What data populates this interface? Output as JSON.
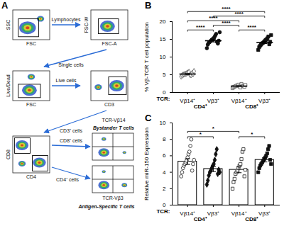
{
  "diagram": {
    "label": "A",
    "plots": [
      {
        "x": "FSC",
        "y": "SSC"
      },
      {
        "x": "FSC-A",
        "y": "FSC-W"
      },
      {
        "x": "FSC",
        "y": "Live/Dead"
      },
      {
        "x": "CD3"
      },
      {
        "x": "CD4",
        "y": "CD8"
      },
      {
        "x": "TCR-Vβ3",
        "y": "TCR-Vβ14"
      }
    ],
    "gates": [
      "Lymphocytes",
      "Single cells",
      "Live cells",
      "CD3⁺ cells"
    ],
    "split": [
      "CD8⁺ cells",
      "CD4⁺ cells"
    ],
    "outputs": {
      "top": "Bystander T cells",
      "bottom": "Antigen-Specific T cells"
    }
  },
  "chart_data": [
    {
      "label": "B",
      "type": "scatter",
      "categories": [
        "Vβ14⁺",
        "Vβ3⁺",
        "Vβ14⁺",
        "Vβ3⁺"
      ],
      "groups": [
        "CD4⁺",
        "CD4⁺",
        "CD8⁺",
        "CD8⁺"
      ],
      "category_title": "TCR:",
      "y_label": "% Vβ-TCR T cell population",
      "ylim": [
        0,
        20
      ],
      "yticks": [
        0,
        5,
        10,
        15,
        20
      ],
      "values": [
        5.2,
        14.6,
        1.8,
        14.1
      ],
      "errors": [
        0.12,
        0.35,
        0.09,
        0.3
      ],
      "points": [
        {
          "values": [
            4.5,
            4.8,
            5.0,
            5.1,
            5.2,
            5.3,
            5.5,
            5.6,
            5.8,
            5.0,
            4.9,
            5.4,
            5.2,
            6.0
          ],
          "marker": "open-diamond",
          "color": "#666666"
        },
        {
          "values": [
            12.5,
            13.5,
            14.0,
            14.2,
            14.5,
            14.8,
            15.0,
            15.2,
            15.5,
            16.0,
            16.5,
            14.3,
            13.8,
            14.6,
            17.0
          ],
          "marker": "circle",
          "color": "#111111"
        },
        {
          "values": [
            1.2,
            1.5,
            1.6,
            1.8,
            1.9,
            2.0,
            2.2,
            1.7,
            1.4,
            2.4,
            1.9,
            1.8,
            1.6,
            2.1
          ],
          "marker": "open-square",
          "color": "#666666"
        },
        {
          "values": [
            12.0,
            12.8,
            13.2,
            13.5,
            13.8,
            14.0,
            14.2,
            14.5,
            14.8,
            15.0,
            15.3,
            15.8,
            13.6,
            14.3,
            16.2
          ],
          "marker": "square",
          "color": "#111111"
        }
      ],
      "comparisons": [
        {
          "pair": [
            0,
            1
          ],
          "label": "****"
        },
        {
          "pair": [
            2,
            3
          ],
          "label": "****"
        },
        {
          "pair": [
            1,
            2
          ],
          "label": "****"
        },
        {
          "pair": [
            0,
            2
          ],
          "label": "****"
        },
        {
          "pair": [
            1,
            3
          ],
          "label": "****"
        },
        {
          "pair": [
            0,
            3
          ],
          "label": "****"
        }
      ]
    },
    {
      "label": "C",
      "type": "bar",
      "categories": [
        "Vβ14⁺",
        "Vβ3⁺",
        "Vβ14⁺",
        "Vβ3⁺"
      ],
      "groups": [
        "CD4⁺",
        "CD4⁺",
        "CD8⁺",
        "CD8⁺"
      ],
      "category_title": "TCR:",
      "y_label": "Relative miR-150 Expression",
      "ylim": [
        0,
        10
      ],
      "yticks": [
        0,
        2,
        4,
        6,
        8,
        10
      ],
      "values": [
        5.3,
        4.4,
        4.3,
        5.5
      ],
      "errors": [
        0.35,
        0.32,
        0.36,
        0.25
      ],
      "points": [
        {
          "values": [
            3.5,
            4.0,
            4.5,
            4.8,
            5.0,
            5.2,
            5.4,
            5.8,
            6.2,
            6.5,
            7.2,
            8.0,
            4.2,
            5.0,
            5.5
          ],
          "marker": "open-circle",
          "color": "#333333"
        },
        {
          "values": [
            2.5,
            3.0,
            3.6,
            4.0,
            4.2,
            4.5,
            4.8,
            5.0,
            5.5,
            6.2,
            6.8,
            3.8,
            4.3,
            4.0
          ],
          "marker": "diamond",
          "color": "#111111"
        },
        {
          "values": [
            2.0,
            2.8,
            3.2,
            3.8,
            4.0,
            4.2,
            4.5,
            4.8,
            5.0,
            5.6,
            6.5,
            6.8,
            3.5,
            4.3
          ],
          "marker": "open-square",
          "color": "#333333"
        },
        {
          "values": [
            4.0,
            4.5,
            4.8,
            5.0,
            5.2,
            5.4,
            5.6,
            5.8,
            6.0,
            6.3,
            6.8,
            7.2,
            5.5,
            5.0
          ],
          "marker": "square",
          "color": "#111111"
        }
      ],
      "comparisons": [
        {
          "pair": [
            0,
            1
          ],
          "label": "*"
        },
        {
          "pair": [
            2,
            3
          ],
          "label": "*"
        },
        {
          "pair": [
            0,
            2
          ],
          "label": "*"
        }
      ]
    }
  ]
}
